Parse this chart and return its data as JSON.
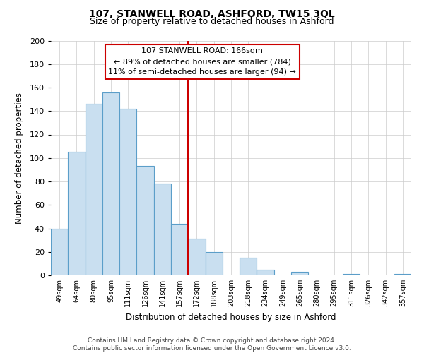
{
  "title": "107, STANWELL ROAD, ASHFORD, TW15 3QL",
  "subtitle": "Size of property relative to detached houses in Ashford",
  "xlabel": "Distribution of detached houses by size in Ashford",
  "ylabel": "Number of detached properties",
  "categories": [
    "49sqm",
    "64sqm",
    "80sqm",
    "95sqm",
    "111sqm",
    "126sqm",
    "141sqm",
    "157sqm",
    "172sqm",
    "188sqm",
    "203sqm",
    "218sqm",
    "234sqm",
    "249sqm",
    "265sqm",
    "280sqm",
    "295sqm",
    "311sqm",
    "326sqm",
    "342sqm",
    "357sqm"
  ],
  "values": [
    40,
    105,
    146,
    156,
    142,
    93,
    78,
    44,
    31,
    20,
    0,
    15,
    5,
    0,
    3,
    0,
    0,
    1,
    0,
    0,
    1
  ],
  "bar_color": "#c9dff0",
  "bar_edge_color": "#5b9ec9",
  "vline_color": "#cc0000",
  "vline_x_index": 8,
  "annotation_title": "107 STANWELL ROAD: 166sqm",
  "annotation_line1": "← 89% of detached houses are smaller (784)",
  "annotation_line2": "11% of semi-detached houses are larger (94) →",
  "annotation_box_edge_color": "#cc0000",
  "ylim": [
    0,
    200
  ],
  "yticks": [
    0,
    20,
    40,
    60,
    80,
    100,
    120,
    140,
    160,
    180,
    200
  ],
  "footer_line1": "Contains HM Land Registry data © Crown copyright and database right 2024.",
  "footer_line2": "Contains public sector information licensed under the Open Government Licence v3.0.",
  "background_color": "#ffffff",
  "grid_color": "#cccccc"
}
